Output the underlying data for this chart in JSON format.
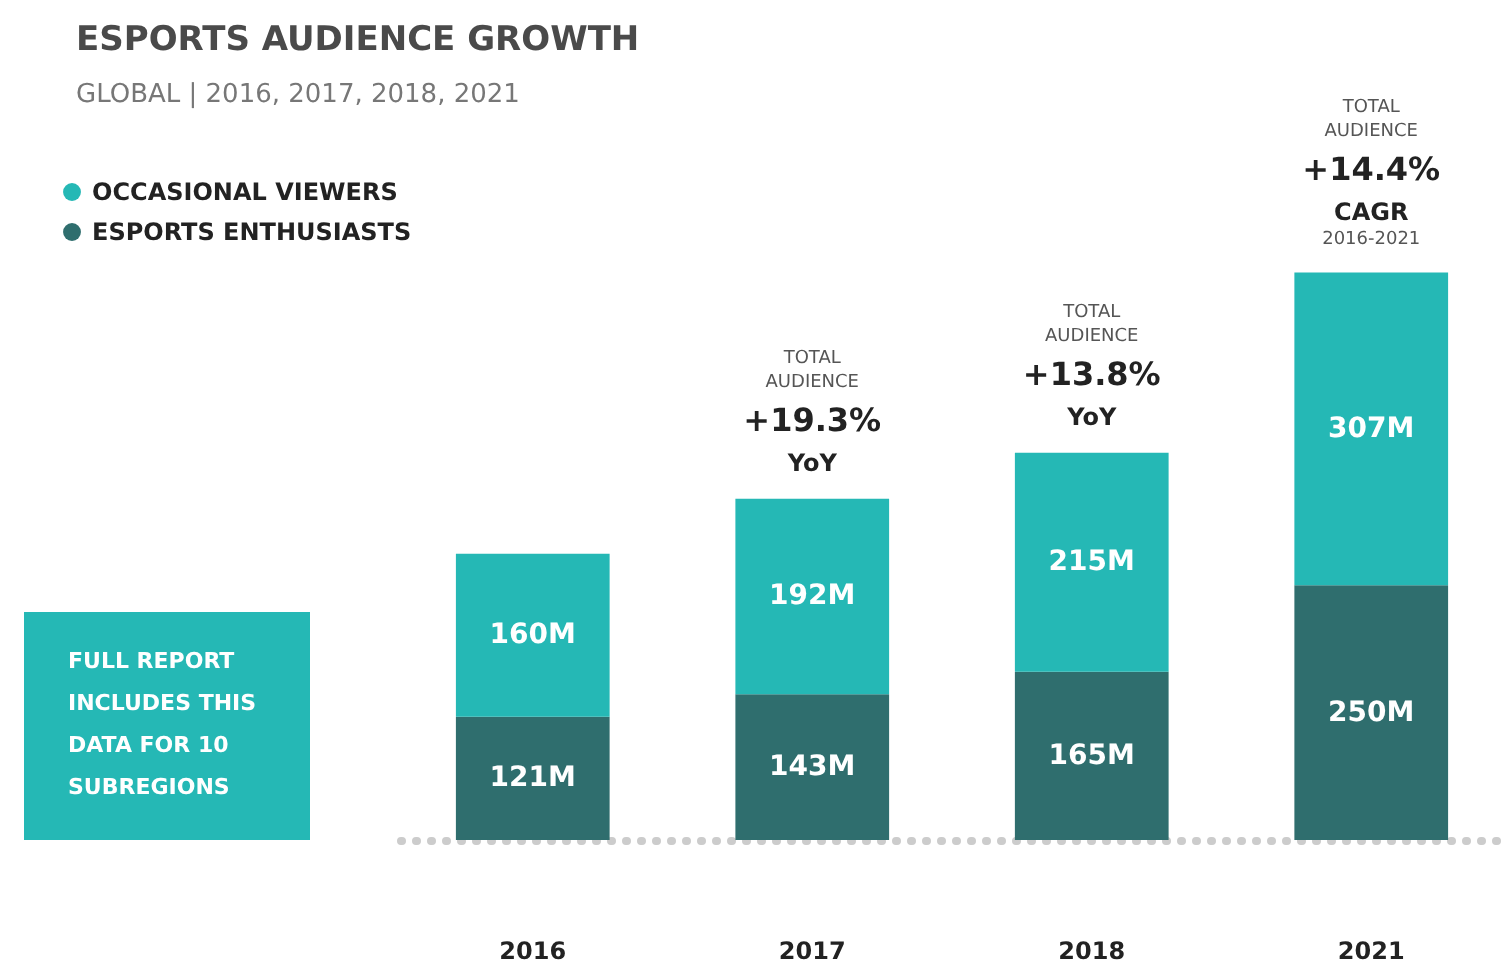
{
  "chart_data": {
    "type": "bar",
    "title": "ESPORTS AUDIENCE GROWTH",
    "subtitle": "GLOBAL | 2016, 2017, 2018, 2021",
    "categories": [
      "2016",
      "2017",
      "2018",
      "2021"
    ],
    "stacked": true,
    "series": [
      {
        "name": "ESPORTS ENTHUSIASTS",
        "color": "#2f6e6e",
        "values": [
          121,
          143,
          165,
          250
        ],
        "value_labels": [
          "121M",
          "143M",
          "165M",
          "250M"
        ]
      },
      {
        "name": "OCCASIONAL VIEWERS",
        "color": "#25b8b5",
        "values": [
          160,
          192,
          215,
          307
        ],
        "value_labels": [
          "160M",
          "192M",
          "215M",
          "307M"
        ]
      }
    ],
    "legend": "top left",
    "annotations": [
      {
        "text": "TOTAL\nAUDIENCE\n+19.3%\nYoY",
        "x": "2017",
        "y": 335
      },
      {
        "text": "TOTAL\nAUDIENCE\n+13.8%\nYoY",
        "x": "2018",
        "y": 380
      },
      {
        "text": "TOTAL\nAUDIENCE\n+14.4%\nCAGR\n2016-2021",
        "x": "2021",
        "y": 557
      },
      "FULL REPORT\nINCLUDES THIS\nDATA FOR 10\nSUBREGIONS"
    ]
  }
}
